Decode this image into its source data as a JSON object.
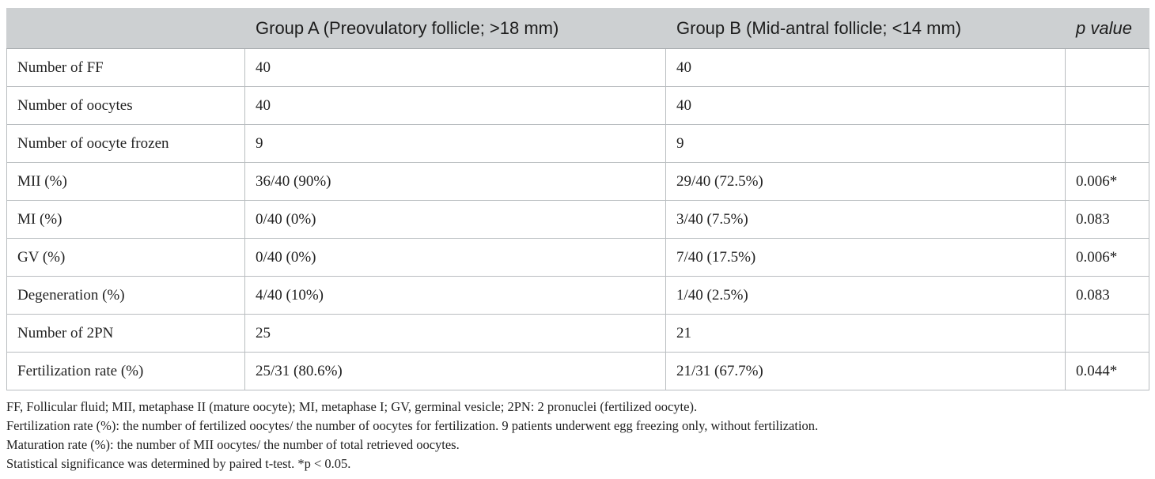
{
  "table": {
    "headers": [
      "",
      "Group A (Preovulatory follicle; >18 mm)",
      "Group B (Mid-antral follicle; <14 mm)",
      "p value"
    ],
    "rows": [
      [
        "Number of FF",
        "40",
        "40",
        ""
      ],
      [
        "Number of oocytes",
        "40",
        "40",
        ""
      ],
      [
        "Number of oocyte frozen",
        "9",
        "9",
        ""
      ],
      [
        "MII (%)",
        "36/40 (90%)",
        "29/40 (72.5%)",
        "0.006*"
      ],
      [
        "MI (%)",
        "0/40 (0%)",
        "3/40 (7.5%)",
        "0.083"
      ],
      [
        "GV (%)",
        "0/40 (0%)",
        "7/40 (17.5%)",
        "0.006*"
      ],
      [
        "Degeneration (%)",
        "4/40 (10%)",
        "1/40 (2.5%)",
        "0.083"
      ],
      [
        "Number of 2PN",
        "25",
        "21",
        ""
      ],
      [
        "Fertilization rate (%)",
        "25/31 (80.6%)",
        "21/31 (67.7%)",
        "0.044*"
      ]
    ]
  },
  "footnotes": [
    "FF, Follicular fluid; MII, metaphase II (mature oocyte); MI, metaphase I; GV, germinal vesicle; 2PN: 2 pronuclei (fertilized oocyte).",
    "Fertilization rate (%): the number of fertilized oocytes/ the number of oocytes for fertilization. 9 patients underwent egg freezing only, without fertilization.",
    "Maturation rate (%): the number of MII oocytes/ the number of total retrieved oocytes.",
    "Statistical significance was determined by paired t-test. *p < 0.05."
  ],
  "colors": {
    "header_background": "#cdd0d2",
    "border": "#b9bdc0",
    "text": "#222222"
  }
}
